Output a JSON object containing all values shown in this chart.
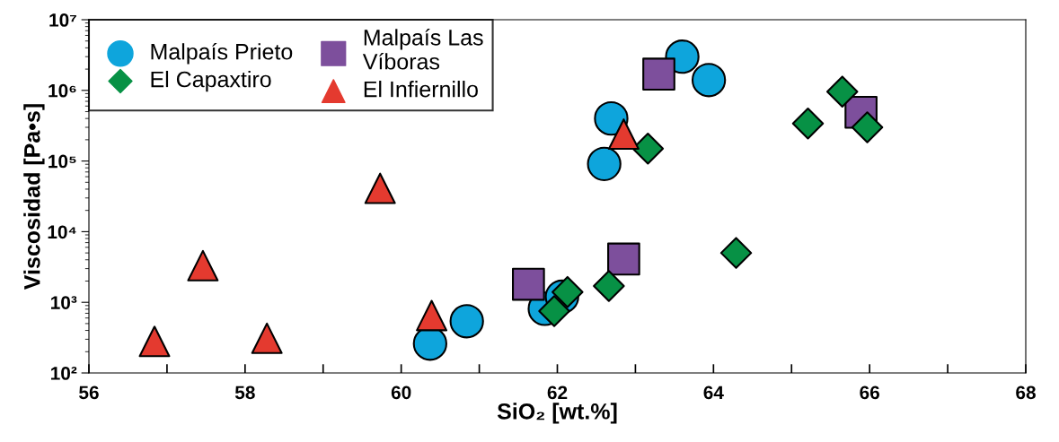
{
  "chart_data": {
    "type": "scatter",
    "xlabel": "SiO₂ [wt.%]",
    "ylabel": "Viscosidad [Pa•s]",
    "xlim": [
      56,
      68
    ],
    "ylim": [
      100,
      10000000
    ],
    "log": "y",
    "grid": false,
    "legend": "top left",
    "xticks": [
      56,
      {
        "value": 57,
        "label": null
      },
      58,
      {
        "value": 59,
        "label": null
      },
      60,
      {
        "value": 61,
        "label": null
      },
      62,
      {
        "value": 63,
        "label": null
      },
      64,
      {
        "value": 65,
        "label": null
      },
      66,
      {
        "value": 67,
        "label": null
      },
      68
    ],
    "yticks": [
      {
        "value": 100,
        "label": "10²"
      },
      {
        "value": 1000,
        "label": "10³"
      },
      {
        "value": 10000,
        "label": "10⁴"
      },
      {
        "value": 100000,
        "label": "10⁵"
      },
      {
        "value": 1000000,
        "label": "10⁶"
      },
      {
        "value": 10000000,
        "label": "10⁷"
      }
    ],
    "series": [
      {
        "name": "Malpaís Prieto",
        "color": "#0ea5dc",
        "marker": "circle",
        "x": [
          60.37,
          60.84,
          61.84,
          62.06,
          62.6,
          62.69,
          63.6,
          63.94
        ],
        "values": [
          260,
          540,
          810,
          1200,
          91000,
          400000,
          3000000,
          1400000
        ]
      },
      {
        "name": "Malpaís Las\nVíboras",
        "color": "#7d4f9c",
        "marker": "square",
        "x": [
          61.63,
          62.85,
          63.3,
          65.89
        ],
        "values": [
          1800,
          4100,
          1700000,
          490000
        ]
      },
      {
        "name": "El Capaxtiro",
        "color": "#079145",
        "marker": "diamond",
        "x": [
          61.96,
          62.13,
          62.66,
          63.16,
          64.29,
          65.21,
          65.65,
          65.97
        ],
        "values": [
          750,
          1400,
          1700,
          150000,
          5000,
          340000,
          960000,
          300000
        ]
      },
      {
        "name": "El Infiernillo",
        "color": "#e43a2f",
        "marker": "triangle",
        "x": [
          56.84,
          57.46,
          58.28,
          59.73,
          60.39,
          62.85
        ],
        "values": [
          280,
          3300,
          310,
          41000,
          650,
          240000
        ]
      }
    ]
  }
}
